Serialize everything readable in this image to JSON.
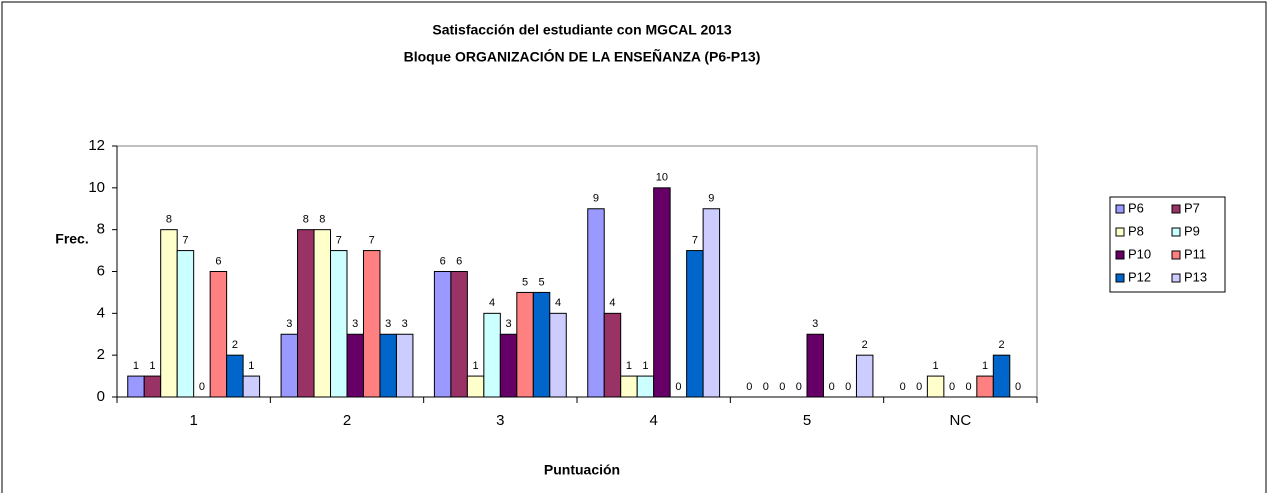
{
  "chart_data": {
    "type": "bar",
    "title": "Satisfacción del estudiante con MGCAL 2013",
    "subtitle": "Bloque ORGANIZACIÓN DE LA ENSEÑANZA (P6-P13)",
    "y_label": "Frec.",
    "x_label": "Puntuación",
    "categories": [
      "1",
      "2",
      "3",
      "4",
      "5",
      "NC"
    ],
    "series": [
      {
        "name": "P6",
        "color": "#9999ff",
        "values": [
          1,
          3,
          6,
          9,
          0,
          0
        ]
      },
      {
        "name": "P7",
        "color": "#993366",
        "values": [
          1,
          8,
          6,
          4,
          0,
          0
        ]
      },
      {
        "name": "P8",
        "color": "#ffffcc",
        "values": [
          8,
          8,
          1,
          1,
          0,
          1
        ]
      },
      {
        "name": "P9",
        "color": "#ccffff",
        "values": [
          7,
          7,
          4,
          1,
          0,
          0
        ]
      },
      {
        "name": "P10",
        "color": "#660066",
        "values": [
          0,
          3,
          3,
          10,
          3,
          0
        ]
      },
      {
        "name": "P11",
        "color": "#ff8080",
        "values": [
          6,
          7,
          5,
          0,
          0,
          1
        ]
      },
      {
        "name": "P12",
        "color": "#0066cc",
        "values": [
          2,
          3,
          5,
          7,
          0,
          2
        ]
      },
      {
        "name": "P13",
        "color": "#ccccff",
        "values": [
          1,
          3,
          4,
          9,
          2,
          0
        ]
      }
    ],
    "ylim": [
      0,
      12
    ],
    "yticks": [
      0,
      2,
      4,
      6,
      8,
      10,
      12
    ],
    "grid": false,
    "legend": "right"
  }
}
